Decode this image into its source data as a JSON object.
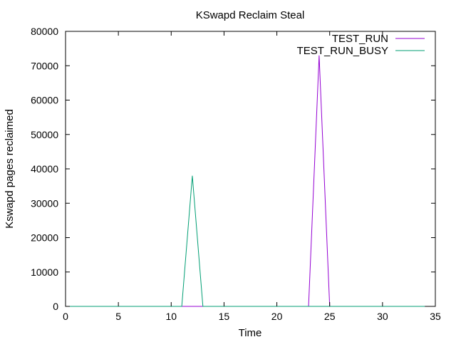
{
  "chart_data": {
    "type": "line",
    "title": "KSwapd Reclaim Steal",
    "xlabel": "Time",
    "ylabel": "Kswapd pages reclaimed",
    "xlim": [
      0,
      35
    ],
    "ylim": [
      0,
      80000
    ],
    "xticks": [
      0,
      5,
      10,
      15,
      20,
      25,
      30,
      35
    ],
    "yticks": [
      0,
      10000,
      20000,
      30000,
      40000,
      50000,
      60000,
      70000,
      80000
    ],
    "grid": false,
    "legend_position": "top-right",
    "series": [
      {
        "name": "TEST_RUN",
        "color": "#9400d3",
        "x": [
          0,
          1,
          2,
          3,
          4,
          5,
          6,
          7,
          8,
          9,
          10,
          11,
          12,
          13,
          14,
          15,
          16,
          17,
          18,
          19,
          20,
          21,
          22,
          23,
          24,
          25,
          26,
          27,
          28,
          29,
          30,
          31,
          32,
          33,
          34
        ],
        "y": [
          0,
          0,
          0,
          0,
          0,
          0,
          0,
          0,
          0,
          0,
          0,
          0,
          0,
          0,
          0,
          0,
          0,
          0,
          0,
          0,
          0,
          0,
          0,
          0,
          73000,
          0,
          0,
          0,
          0,
          0,
          0,
          0,
          0,
          0,
          0
        ]
      },
      {
        "name": "TEST_RUN_BUSY",
        "color": "#009e73",
        "x": [
          0,
          1,
          2,
          3,
          4,
          5,
          6,
          7,
          8,
          9,
          10,
          11,
          12,
          13,
          14,
          15,
          16,
          17,
          18,
          19,
          20,
          21,
          22,
          23,
          24,
          25,
          26,
          27,
          28,
          29,
          30,
          31,
          32,
          33,
          34
        ],
        "y": [
          0,
          0,
          0,
          0,
          0,
          0,
          0,
          0,
          0,
          0,
          0,
          0,
          38000,
          0,
          0,
          0,
          0,
          0,
          0,
          0,
          0,
          0,
          0,
          0,
          0,
          0,
          0,
          0,
          0,
          0,
          0,
          0,
          0,
          0,
          0
        ]
      }
    ]
  }
}
